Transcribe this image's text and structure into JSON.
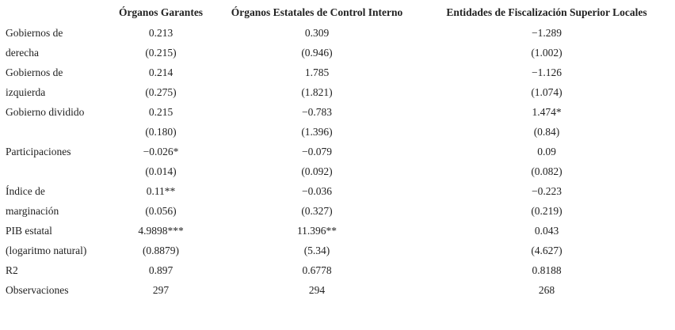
{
  "table": {
    "header": [
      null,
      "Órganos Garantes",
      "Órganos Estatales de Control Interno",
      "Entidades de Fiscalización Superior Locales"
    ],
    "rows": [
      [
        "Gobiernos de",
        "0.213",
        "0.309",
        "−1.289"
      ],
      [
        "derecha",
        "(0.215)",
        "(0.946)",
        "(1.002)"
      ],
      [
        "Gobiernos de",
        "0.214",
        "1.785",
        "−1.126"
      ],
      [
        "izquierda",
        "(0.275)",
        "(1.821)",
        "(1.074)"
      ],
      [
        "Gobierno dividido",
        "0.215",
        "−0.783",
        "1.474*"
      ],
      [
        null,
        "(0.180)",
        "(1.396)",
        "(0.84)"
      ],
      [
        "Participaciones",
        "−0.026*",
        "−0.079",
        "0.09"
      ],
      [
        null,
        "(0.014)",
        "(0.092)",
        "(0.082)"
      ],
      [
        "Índice de",
        "0.11**",
        "−0.036",
        "−0.223"
      ],
      [
        "marginación",
        "(0.056)",
        "(0.327)",
        "(0.219)"
      ],
      [
        "PIB estatal",
        "4.9898***",
        "11.396**",
        "0.043"
      ],
      [
        "(logaritmo natural)",
        "(0.8879)",
        "(5.34)",
        "(4.627)"
      ],
      [
        "R2",
        "0.897",
        "0.6778",
        "0.8188"
      ],
      [
        "Observaciones",
        "297",
        "294",
        "268"
      ]
    ]
  }
}
